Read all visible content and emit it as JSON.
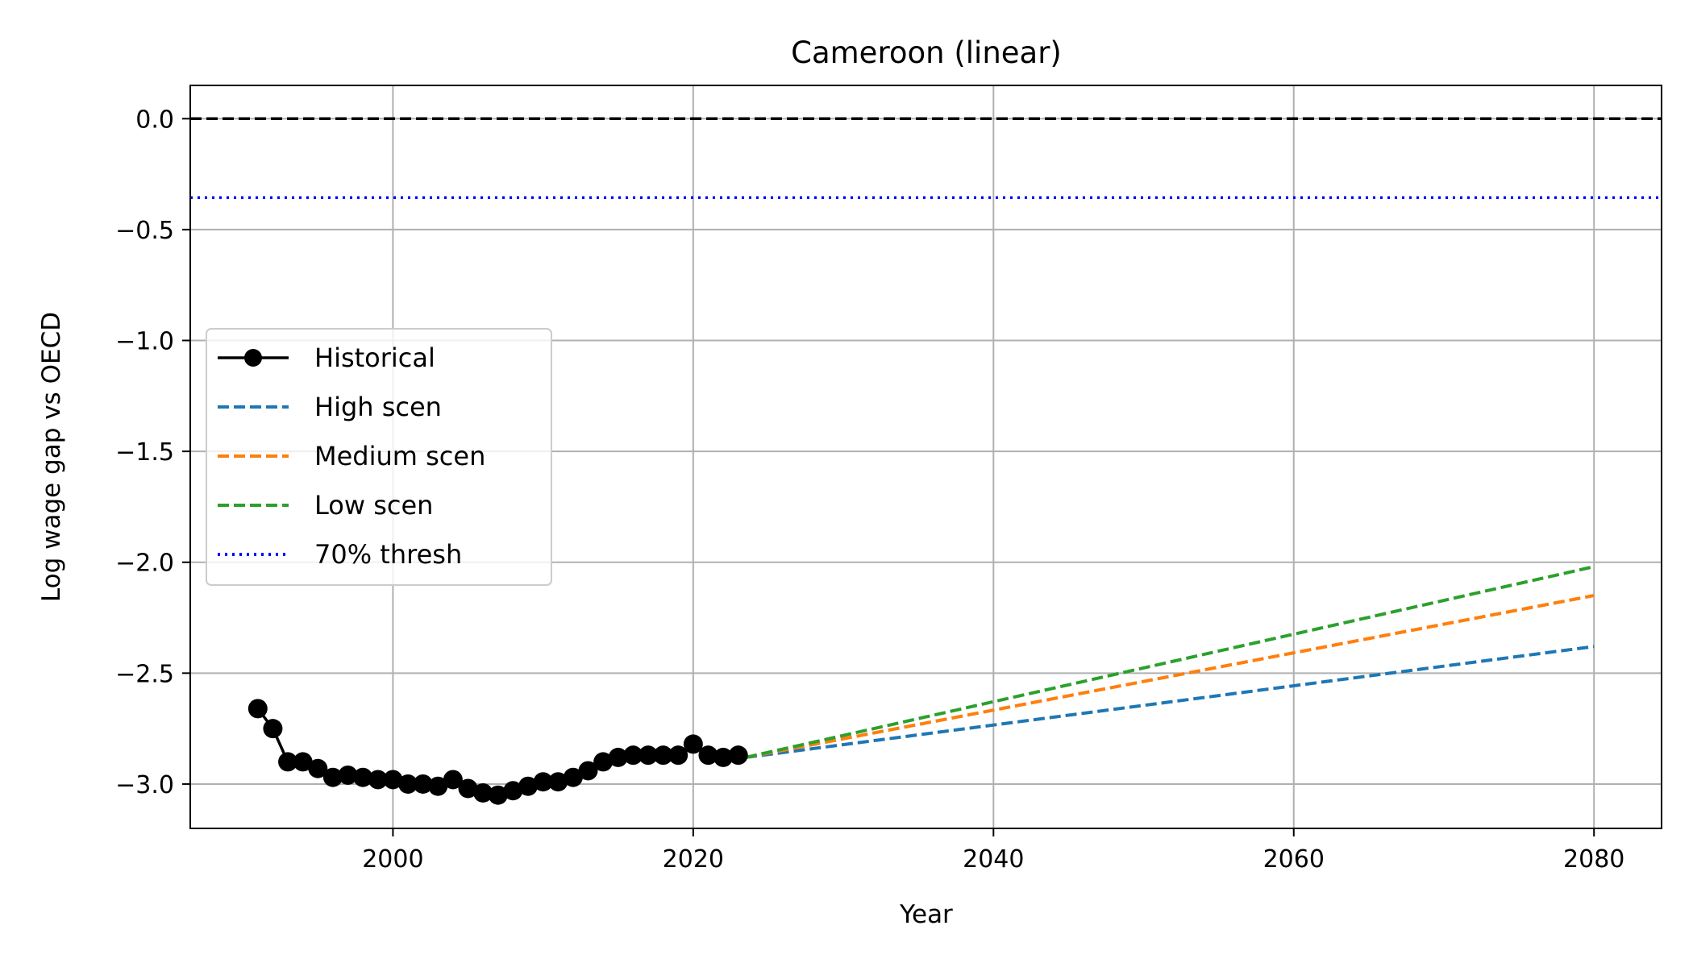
{
  "chart_data": {
    "type": "line",
    "title": "Cameroon (linear)",
    "xlabel": "Year",
    "ylabel": "Log wage gap vs OECD",
    "xlim": [
      1986.5,
      2084.5
    ],
    "ylim": [
      -3.2,
      0.15
    ],
    "xticks": [
      2000,
      2020,
      2040,
      2060,
      2080
    ],
    "yticks": [
      0.0,
      -0.5,
      -1.0,
      -1.5,
      -2.0,
      -2.5,
      -3.0
    ],
    "ytick_labels": [
      "0.0",
      "−0.5",
      "−1.0",
      "−1.5",
      "−2.0",
      "−2.5",
      "−3.0"
    ],
    "grid": true,
    "legend_position": "center-left",
    "reference_lines": [
      {
        "y": 0.0,
        "style": "dashed",
        "color": "#000000"
      },
      {
        "y": -0.356,
        "style": "dotted",
        "color": "#0000ff",
        "name": "70% thresh"
      }
    ],
    "series": [
      {
        "name": "Historical",
        "color": "#000000",
        "style": "solid-marker",
        "x": [
          1991,
          1992,
          1993,
          1994,
          1995,
          1996,
          1997,
          1998,
          1999,
          2000,
          2001,
          2002,
          2003,
          2004,
          2005,
          2006,
          2007,
          2008,
          2009,
          2010,
          2011,
          2012,
          2013,
          2014,
          2015,
          2016,
          2017,
          2018,
          2019,
          2020,
          2021,
          2022,
          2023
        ],
        "y": [
          -2.66,
          -2.75,
          -2.9,
          -2.9,
          -2.93,
          -2.97,
          -2.96,
          -2.97,
          -2.98,
          -2.98,
          -3.0,
          -3.0,
          -3.01,
          -2.98,
          -3.02,
          -3.04,
          -3.05,
          -3.03,
          -3.01,
          -2.99,
          -2.99,
          -2.97,
          -2.94,
          -2.9,
          -2.88,
          -2.87,
          -2.87,
          -2.87,
          -2.87,
          -2.82,
          -2.87,
          -2.88,
          -2.87
        ]
      },
      {
        "name": "High scen",
        "color": "#1f77b4",
        "style": "dashed",
        "x": [
          2023.5,
          2080
        ],
        "y": [
          -2.88,
          -2.38
        ]
      },
      {
        "name": "Medium scen",
        "color": "#ff7f0e",
        "style": "dashed",
        "x": [
          2023.5,
          2080
        ],
        "y": [
          -2.88,
          -2.15
        ]
      },
      {
        "name": "Low scen",
        "color": "#2ca02c",
        "style": "dashed",
        "x": [
          2023.5,
          2080
        ],
        "y": [
          -2.88,
          -2.02
        ]
      }
    ],
    "legend": [
      {
        "label": "Historical",
        "color": "#000000",
        "style": "solid-marker"
      },
      {
        "label": "High scen",
        "color": "#1f77b4",
        "style": "dashed"
      },
      {
        "label": "Medium scen",
        "color": "#ff7f0e",
        "style": "dashed"
      },
      {
        "label": "Low scen",
        "color": "#2ca02c",
        "style": "dashed"
      },
      {
        "label": "70% thresh",
        "color": "#0000ff",
        "style": "dotted"
      }
    ]
  }
}
